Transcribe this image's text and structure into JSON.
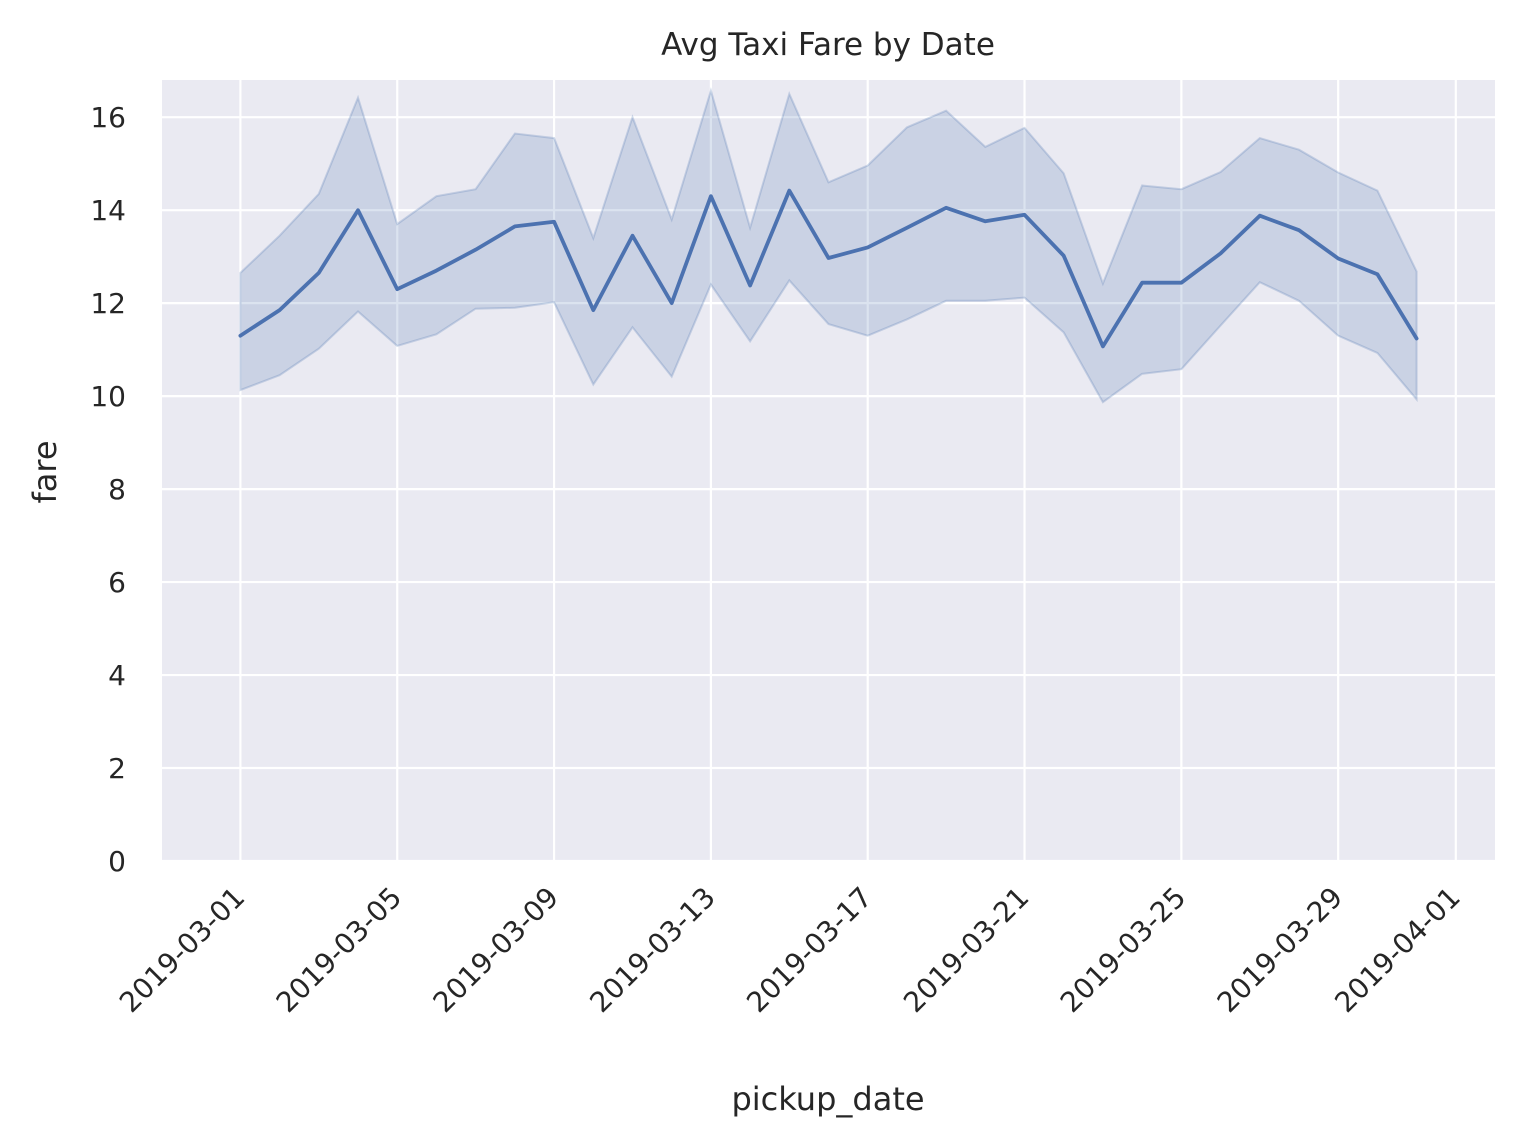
{
  "chart_data": {
    "type": "line",
    "title": "Avg Taxi Fare by Date",
    "xlabel": "pickup_date",
    "ylabel": "fare",
    "x_ticks": [
      "2019-03-01",
      "2019-03-05",
      "2019-03-09",
      "2019-03-13",
      "2019-03-17",
      "2019-03-21",
      "2019-03-25",
      "2019-03-29",
      "2019-04-01"
    ],
    "y_ticks": [
      0,
      2,
      4,
      6,
      8,
      10,
      12,
      14,
      16
    ],
    "ylim": [
      0,
      16.8
    ],
    "xlim": [
      "2019-02-27",
      "2019-04-02"
    ],
    "grid": true,
    "colors": {
      "line": "#4c72b0",
      "band": "#4c72b0",
      "background": "#eaeaf2",
      "grid": "#ffffff"
    },
    "series": [
      {
        "x": [
          "2019-03-01",
          "2019-03-02",
          "2019-03-03",
          "2019-03-04",
          "2019-03-05",
          "2019-03-06",
          "2019-03-07",
          "2019-03-08",
          "2019-03-09",
          "2019-03-10",
          "2019-03-11",
          "2019-03-12",
          "2019-03-13",
          "2019-03-14",
          "2019-03-15",
          "2019-03-16",
          "2019-03-17",
          "2019-03-18",
          "2019-03-19",
          "2019-03-20",
          "2019-03-21",
          "2019-03-22",
          "2019-03-23",
          "2019-03-24",
          "2019-03-25",
          "2019-03-26",
          "2019-03-27",
          "2019-03-28",
          "2019-03-29",
          "2019-03-30",
          "2019-03-31"
        ],
        "y": [
          11.3,
          11.85,
          12.65,
          14.0,
          12.3,
          12.7,
          13.15,
          13.65,
          13.75,
          11.85,
          13.45,
          12.0,
          14.3,
          12.38,
          14.42,
          12.97,
          13.2,
          13.62,
          14.05,
          13.76,
          13.9,
          13.02,
          11.07,
          12.44,
          12.44,
          13.07,
          13.88,
          13.57,
          12.96,
          12.62,
          11.24
        ],
        "lower": [
          10.13,
          10.45,
          11.02,
          11.82,
          11.08,
          11.33,
          11.88,
          11.9,
          12.02,
          10.25,
          11.48,
          10.42,
          12.4,
          11.18,
          12.49,
          11.55,
          11.3,
          11.65,
          12.05,
          12.05,
          12.12,
          11.37,
          9.87,
          10.48,
          10.58,
          11.52,
          12.45,
          12.05,
          11.3,
          10.93,
          9.93
        ],
        "upper": [
          12.65,
          13.45,
          14.35,
          16.42,
          13.7,
          14.3,
          14.45,
          15.65,
          15.55,
          13.4,
          16.0,
          13.8,
          16.57,
          13.62,
          16.5,
          14.6,
          14.96,
          15.78,
          16.14,
          15.36,
          15.77,
          14.79,
          12.42,
          14.53,
          14.45,
          14.82,
          15.55,
          15.3,
          14.81,
          14.42,
          12.68
        ]
      }
    ]
  }
}
